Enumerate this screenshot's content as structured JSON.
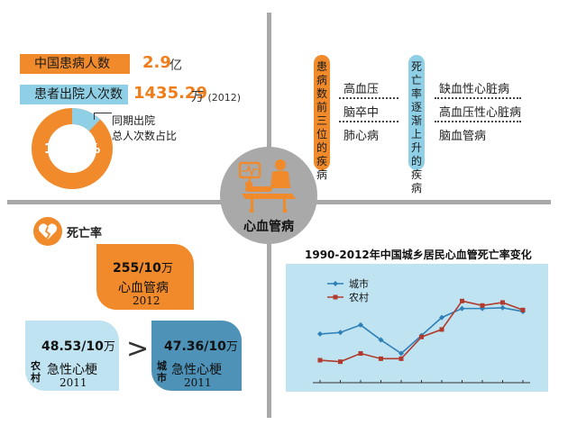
{
  "header_stats": {
    "patients_label": "中国患病人数",
    "patients_value": "2.9",
    "patients_unit": "亿",
    "discharges_label": "患者出院人次数",
    "discharges_value": "1435.29",
    "discharges_unit": "万",
    "discharges_year": "(2012)",
    "share_caption_line1": "同期出院",
    "share_caption_line2": "总人次数占比",
    "share_percent": "12.24%",
    "share_fraction": 0.1224
  },
  "center": {
    "label": "心血管病",
    "icon": "hospital-bed-icon"
  },
  "top_diseases": {
    "title": "患病数前三位的疾病",
    "items": [
      "高血压",
      "脑卒中",
      "肺心病"
    ]
  },
  "rising_mortality": {
    "title": "死亡率逐渐上升的疾病",
    "items": [
      "缺血性心脏病",
      "高血压性心脏病",
      "脑血管病"
    ]
  },
  "death_rate": {
    "label": "死亡率",
    "icon": "broken-heart-icon",
    "cardio": {
      "value": "255/10",
      "unit": "万",
      "name": "心血管病",
      "year": "2012"
    },
    "rural": {
      "tag": "农村",
      "value": "48.53/10",
      "unit": "万",
      "name": "急性心梗",
      "year": "2011"
    },
    "comparison": ">",
    "city": {
      "tag": "城市",
      "value": "47.36/10",
      "unit": "万",
      "name": "急性心梗",
      "year": "2011"
    }
  },
  "chart_data": {
    "type": "line",
    "title": "1990-2012年中国城乡居民心血管死亡率变化",
    "x": [
      1990,
      1992,
      1994,
      1996,
      1998,
      2000,
      2002,
      2004,
      2006,
      2008,
      2010
    ],
    "series": [
      {
        "name": "城市",
        "color": "#2f80b8",
        "marker": "diamond",
        "values": [
          0.28,
          0.3,
          0.4,
          0.2,
          0.02,
          0.26,
          0.5,
          0.62,
          0.62,
          0.63,
          0.58
        ]
      },
      {
        "name": "农村",
        "color": "#b03a2e",
        "marker": "square",
        "values": [
          -0.07,
          -0.09,
          0.02,
          -0.05,
          -0.05,
          0.24,
          0.34,
          0.72,
          0.66,
          0.7,
          0.6
        ]
      }
    ],
    "ylim": [
      -0.25,
      1.0
    ],
    "grid": false,
    "legend": "top-left"
  }
}
